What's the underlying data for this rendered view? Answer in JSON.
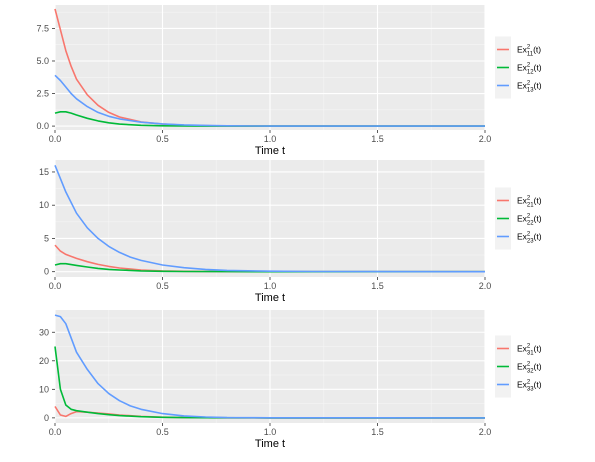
{
  "chart_data": [
    {
      "type": "line",
      "xlabel": "Time t",
      "xlim": [
        0,
        2
      ],
      "ylim": [
        -0.3,
        9.3
      ],
      "x_ticks": [
        "0.0",
        "0.5",
        "1.0",
        "1.5",
        "2.0"
      ],
      "y_ticks": [
        "0.0",
        "2.5",
        "5.0",
        "7.5"
      ],
      "y_tick_values": [
        0,
        2.5,
        5,
        7.5
      ],
      "grid": true,
      "legend_position": "right",
      "series": [
        {
          "name": "Ex",
          "sup": "2",
          "sub": "11",
          "suffix": "(t)",
          "color": "#F8766D",
          "x": [
            0,
            0.025,
            0.05,
            0.075,
            0.1,
            0.15,
            0.2,
            0.25,
            0.3,
            0.4,
            0.5,
            0.6,
            0.7,
            0.8,
            1.0,
            2.0
          ],
          "y": [
            9.0,
            7.4,
            5.8,
            4.6,
            3.6,
            2.4,
            1.6,
            1.05,
            0.7,
            0.32,
            0.15,
            0.07,
            0.03,
            0.01,
            0,
            0
          ]
        },
        {
          "name": "Ex",
          "sup": "2",
          "sub": "12",
          "suffix": "(t)",
          "color": "#00BA38",
          "x": [
            0,
            0.025,
            0.05,
            0.075,
            0.1,
            0.15,
            0.2,
            0.25,
            0.3,
            0.4,
            0.5,
            0.6,
            0.7,
            0.8,
            1.0,
            2.0
          ],
          "y": [
            1.0,
            1.1,
            1.1,
            1.0,
            0.85,
            0.6,
            0.4,
            0.25,
            0.15,
            0.06,
            0.02,
            0.01,
            0,
            0,
            0,
            0
          ]
        },
        {
          "name": "Ex",
          "sup": "2",
          "sub": "13",
          "suffix": "(t)",
          "color": "#619CFF",
          "x": [
            0,
            0.025,
            0.05,
            0.075,
            0.1,
            0.15,
            0.2,
            0.25,
            0.3,
            0.4,
            0.5,
            0.6,
            0.7,
            0.8,
            1.0,
            2.0
          ],
          "y": [
            3.9,
            3.5,
            3.0,
            2.5,
            2.1,
            1.5,
            1.05,
            0.75,
            0.55,
            0.3,
            0.17,
            0.09,
            0.05,
            0.02,
            0,
            0
          ]
        }
      ]
    },
    {
      "type": "line",
      "xlabel": "Time t",
      "xlim": [
        0,
        2
      ],
      "ylim": [
        -0.8,
        16.8
      ],
      "x_ticks": [
        "0.0",
        "0.5",
        "1.0",
        "1.5",
        "2.0"
      ],
      "y_ticks": [
        "0",
        "5",
        "10",
        "15"
      ],
      "y_tick_values": [
        0,
        5,
        10,
        15
      ],
      "grid": true,
      "legend_position": "right",
      "series": [
        {
          "name": "Ex",
          "sup": "2",
          "sub": "21",
          "suffix": "(t)",
          "color": "#F8766D",
          "x": [
            0,
            0.025,
            0.05,
            0.1,
            0.15,
            0.2,
            0.25,
            0.3,
            0.4,
            0.5,
            0.6,
            0.7,
            0.8,
            1.0,
            2.0
          ],
          "y": [
            4.0,
            3.1,
            2.6,
            2.0,
            1.5,
            1.1,
            0.8,
            0.55,
            0.25,
            0.12,
            0.05,
            0.02,
            0.01,
            0,
            0
          ]
        },
        {
          "name": "Ex",
          "sup": "2",
          "sub": "22",
          "suffix": "(t)",
          "color": "#00BA38",
          "x": [
            0,
            0.025,
            0.05,
            0.1,
            0.15,
            0.2,
            0.25,
            0.3,
            0.4,
            0.5,
            0.6,
            0.8,
            1.0,
            1.3,
            2.0
          ],
          "y": [
            1.0,
            1.2,
            1.2,
            0.95,
            0.7,
            0.5,
            0.35,
            0.25,
            0.12,
            0.05,
            0.02,
            0.01,
            0,
            0,
            0
          ]
        },
        {
          "name": "Ex",
          "sup": "2",
          "sub": "23",
          "suffix": "(t)",
          "color": "#619CFF",
          "x": [
            0,
            0.025,
            0.05,
            0.1,
            0.15,
            0.2,
            0.25,
            0.3,
            0.35,
            0.4,
            0.5,
            0.6,
            0.7,
            0.8,
            1.0,
            1.2,
            2.0
          ],
          "y": [
            16.0,
            14.0,
            12.0,
            8.8,
            6.6,
            5.0,
            3.8,
            2.9,
            2.2,
            1.7,
            1.0,
            0.6,
            0.35,
            0.2,
            0.07,
            0.02,
            0
          ]
        }
      ]
    },
    {
      "type": "line",
      "xlabel": "Time t",
      "xlim": [
        0,
        2
      ],
      "ylim": [
        -1.8,
        37.8
      ],
      "x_ticks": [
        "0.0",
        "0.5",
        "1.0",
        "1.5",
        "2.0"
      ],
      "y_ticks": [
        "0",
        "10",
        "20",
        "30"
      ],
      "y_tick_values": [
        0,
        10,
        20,
        30
      ],
      "grid": true,
      "legend_position": "right",
      "series": [
        {
          "name": "Ex",
          "sup": "2",
          "sub": "31",
          "suffix": "(t)",
          "color": "#F8766D",
          "x": [
            0,
            0.025,
            0.05,
            0.075,
            0.1,
            0.15,
            0.2,
            0.25,
            0.3,
            0.4,
            0.5,
            0.6,
            0.7,
            0.8,
            1.0,
            2.0
          ],
          "y": [
            4.0,
            1.0,
            0.5,
            1.5,
            2.2,
            2.0,
            1.7,
            1.4,
            1.0,
            0.5,
            0.25,
            0.1,
            0.05,
            0.02,
            0,
            0
          ]
        },
        {
          "name": "Ex",
          "sup": "2",
          "sub": "32",
          "suffix": "(t)",
          "color": "#00BA38",
          "x": [
            0,
            0.025,
            0.05,
            0.075,
            0.1,
            0.15,
            0.2,
            0.25,
            0.3,
            0.4,
            0.5,
            0.6,
            0.7,
            0.85,
            1.0,
            2.0
          ],
          "y": [
            25.0,
            10.0,
            4.5,
            3.0,
            2.5,
            2.0,
            1.5,
            1.1,
            0.8,
            0.4,
            0.2,
            0.1,
            0.05,
            0.01,
            0,
            0
          ]
        },
        {
          "name": "Ex",
          "sup": "2",
          "sub": "33",
          "suffix": "(t)",
          "color": "#619CFF",
          "x": [
            0,
            0.025,
            0.05,
            0.1,
            0.15,
            0.2,
            0.25,
            0.3,
            0.35,
            0.4,
            0.5,
            0.6,
            0.7,
            0.8,
            1.0,
            2.0
          ],
          "y": [
            36.0,
            35.5,
            33.0,
            23.0,
            17.0,
            12.0,
            8.5,
            6.0,
            4.2,
            3.0,
            1.5,
            0.7,
            0.3,
            0.1,
            0.02,
            0
          ]
        }
      ]
    }
  ]
}
